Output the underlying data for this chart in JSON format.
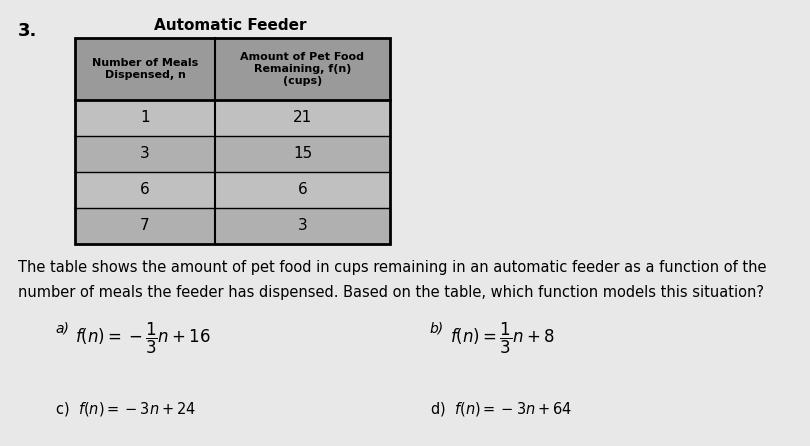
{
  "title": "Automatic Feeder",
  "col1_header": "Number of Meals\nDispensed, n",
  "col2_header": "Amount of Pet Food\nRemaining, f(n)\n(cups)",
  "table_data": [
    [
      "1",
      "21"
    ],
    [
      "3",
      "15"
    ],
    [
      "6",
      "6"
    ],
    [
      "7",
      "3"
    ]
  ],
  "question_text1": "The table shows the amount of pet food in cups remaining in an automatic feeder as a function of the",
  "question_text2": "number of meals the feeder has dispensed. Based on the table, which function models this situation?",
  "number": "3.",
  "bg_color": "#e8e8e8",
  "table_bg_header": "#9a9a9a",
  "table_bg_data_odd": "#c0c0c0",
  "table_bg_data_even": "#b0b0b0",
  "text_color": "#000000"
}
